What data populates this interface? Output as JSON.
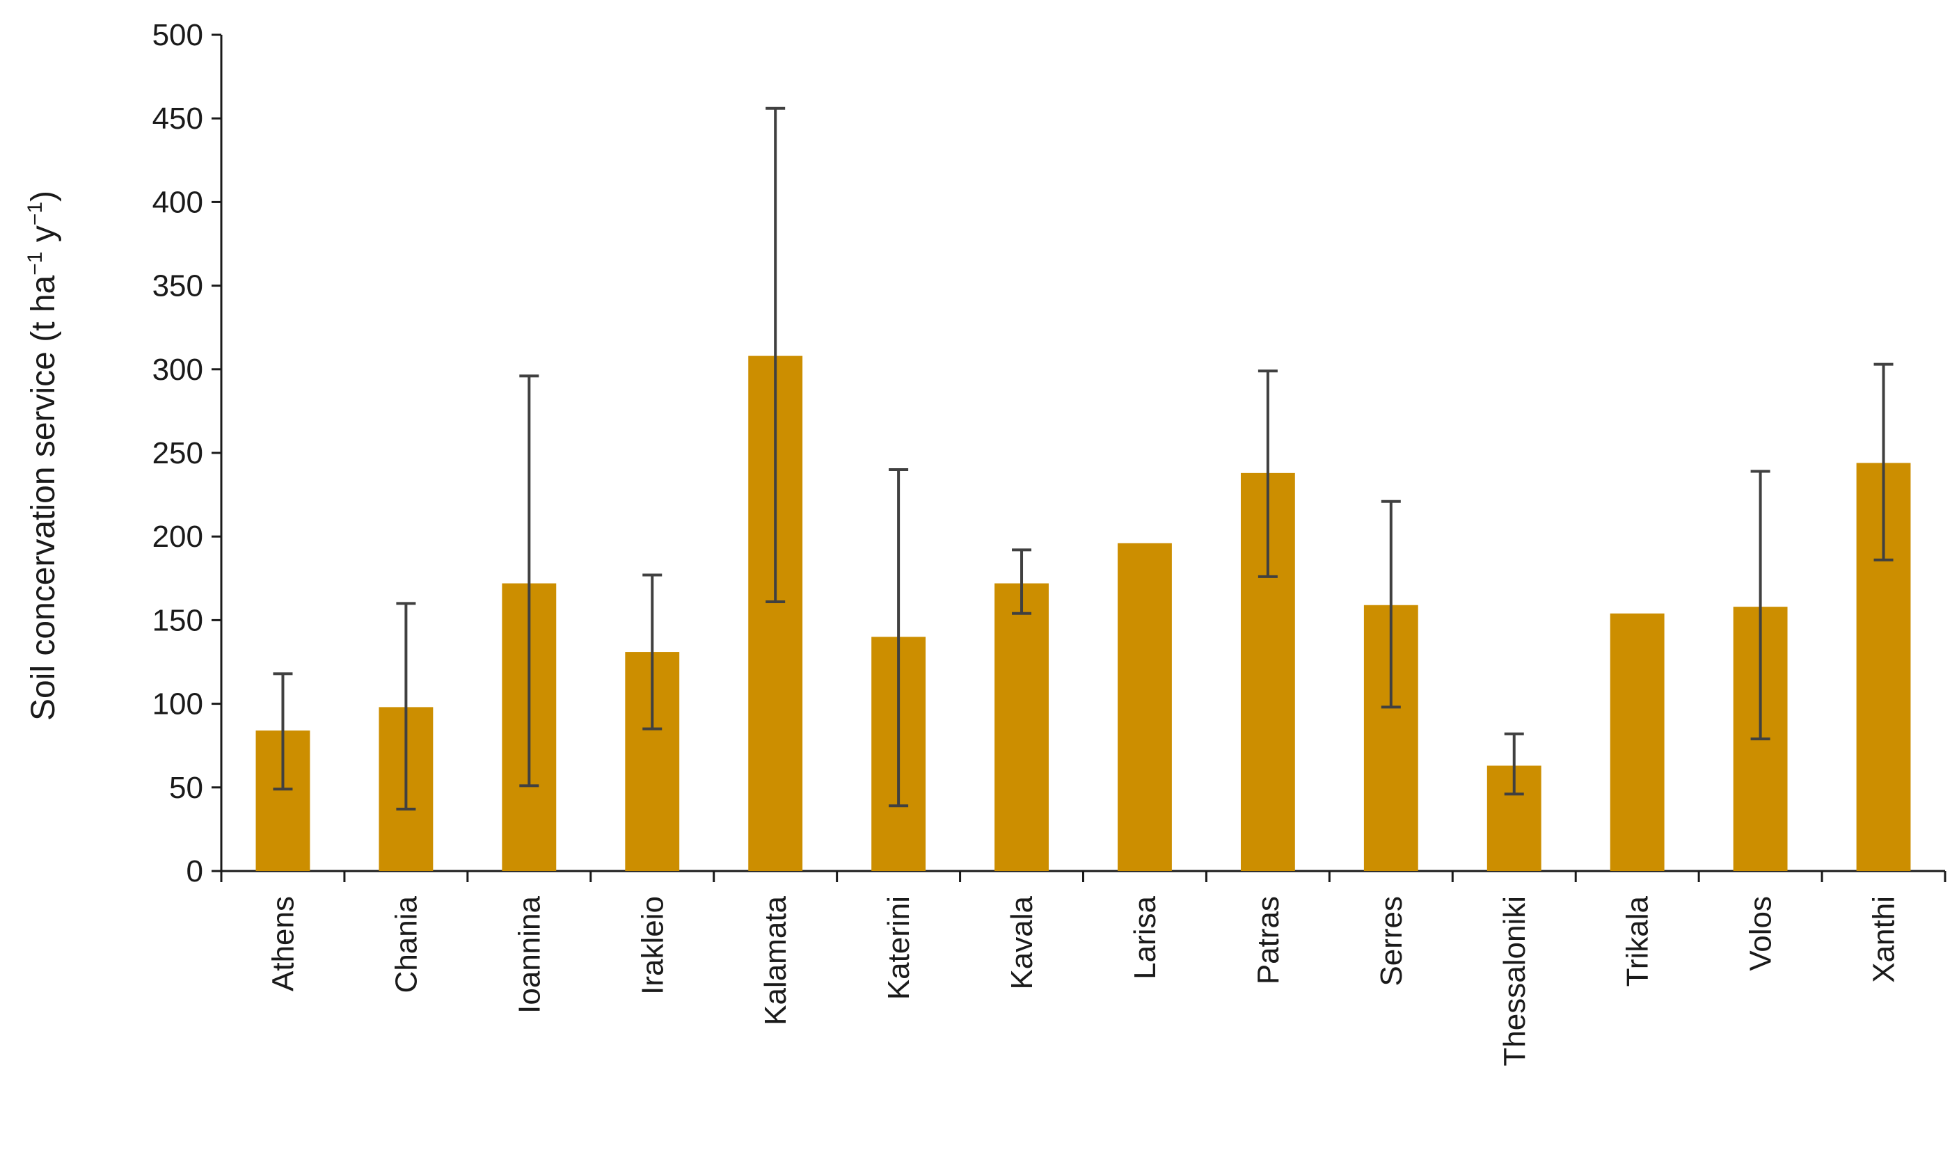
{
  "chart_data": {
    "type": "bar",
    "title": "",
    "ylabel": {
      "prefix": "Soil concervation service (t ha",
      "exp1": "−1",
      "mid": " y",
      "exp2": "−1",
      "suffix": ")"
    },
    "xlabel": "",
    "ylim": [
      0,
      500
    ],
    "yticks": [
      "0",
      "50",
      "100",
      "150",
      "200",
      "250",
      "300",
      "350",
      "400",
      "450",
      "500"
    ],
    "grid": false,
    "legend": "none",
    "colors": {
      "bar": "#CC8E00",
      "error_bar": "#404040",
      "axis": "#1a1a1a"
    },
    "categories": [
      "Athens",
      "Chania",
      "Ioannina",
      "Irakleio",
      "Kalamata",
      "Katerini",
      "Kavala",
      "Larisa",
      "Patras",
      "Serres",
      "Thessaloniki",
      "Trikala",
      "Volos",
      "Xanthi"
    ],
    "values": [
      84,
      98,
      172,
      131,
      308,
      140,
      172,
      196,
      238,
      159,
      63,
      154,
      158,
      244
    ],
    "error_low": [
      49,
      37,
      51,
      85,
      161,
      39,
      154,
      null,
      176,
      98,
      46,
      null,
      79,
      186
    ],
    "error_high": [
      118,
      160,
      296,
      177,
      456,
      240,
      192,
      null,
      299,
      221,
      82,
      null,
      239,
      303
    ]
  }
}
